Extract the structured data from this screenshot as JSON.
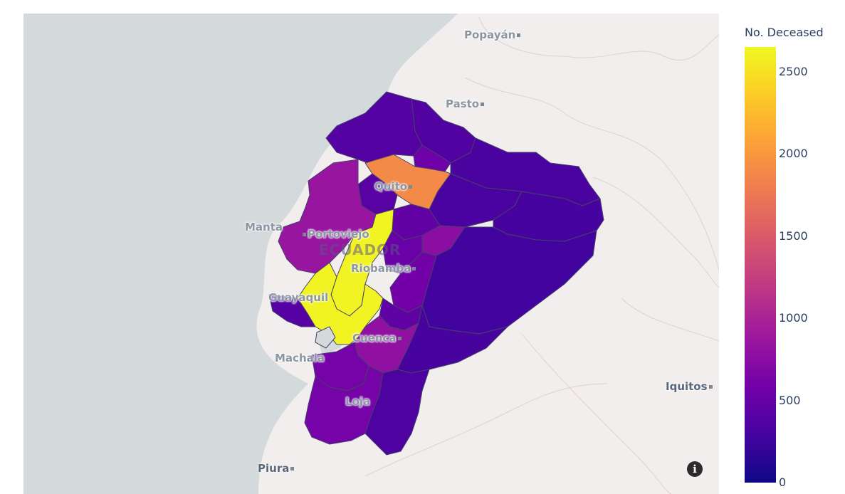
{
  "colorbar": {
    "title": "No. Deceased",
    "ticks": [
      {
        "value": 2500,
        "label": "2500"
      },
      {
        "value": 2000,
        "label": "2000"
      },
      {
        "value": 1500,
        "label": "1500"
      },
      {
        "value": 1000,
        "label": "1000"
      },
      {
        "value": 500,
        "label": "500"
      },
      {
        "value": 0,
        "label": "0"
      }
    ],
    "min": 0,
    "max": 2650,
    "colorscale": [
      "#0d0887",
      "#46039f",
      "#7201a8",
      "#9c179e",
      "#bd3786",
      "#d8576b",
      "#ed7953",
      "#fb9f3a",
      "#fdca26",
      "#f0f921"
    ]
  },
  "map_labels": {
    "popayan": "Popayán",
    "pasto": "Pasto",
    "quito": "Quito",
    "manta": "Manta",
    "portoviejo": "Portoviejo",
    "country": "ECUADOR",
    "riobamba": "Riobamba",
    "guayaquil": "Guayaquil",
    "cuenca": "Cuenca",
    "machala": "Machala",
    "loja": "Loja",
    "iquitos": "Iquitos",
    "piura": "Piura"
  },
  "info_icon": "info-icon",
  "chart_data": {
    "type": "choropleth",
    "title": "",
    "colorbar_title": "No. Deceased",
    "regions": [
      {
        "id": "carchi",
        "value": 380
      },
      {
        "id": "esmeraldas",
        "value": 390
      },
      {
        "id": "imbabura",
        "value": 560
      },
      {
        "id": "sucumbios",
        "value": 330
      },
      {
        "id": "pichincha",
        "value": 1900
      },
      {
        "id": "sto_domingo",
        "value": 420
      },
      {
        "id": "manabi",
        "value": 850
      },
      {
        "id": "napo",
        "value": 320
      },
      {
        "id": "orellana",
        "value": 300
      },
      {
        "id": "cotopaxi",
        "value": 480
      },
      {
        "id": "los_rios",
        "value": 2620
      },
      {
        "id": "tungurahua",
        "value": 760
      },
      {
        "id": "pastaza",
        "value": 280
      },
      {
        "id": "bolivar",
        "value": 520
      },
      {
        "id": "chimborazo",
        "value": 590
      },
      {
        "id": "guayas",
        "value": 2620
      },
      {
        "id": "santa_elena",
        "value": 400
      },
      {
        "id": "canar",
        "value": 470
      },
      {
        "id": "morona",
        "value": 310
      },
      {
        "id": "azuay",
        "value": 800
      },
      {
        "id": "el_oro",
        "value": 620
      },
      {
        "id": "loja",
        "value": 610
      },
      {
        "id": "zamora",
        "value": 350
      }
    ]
  }
}
